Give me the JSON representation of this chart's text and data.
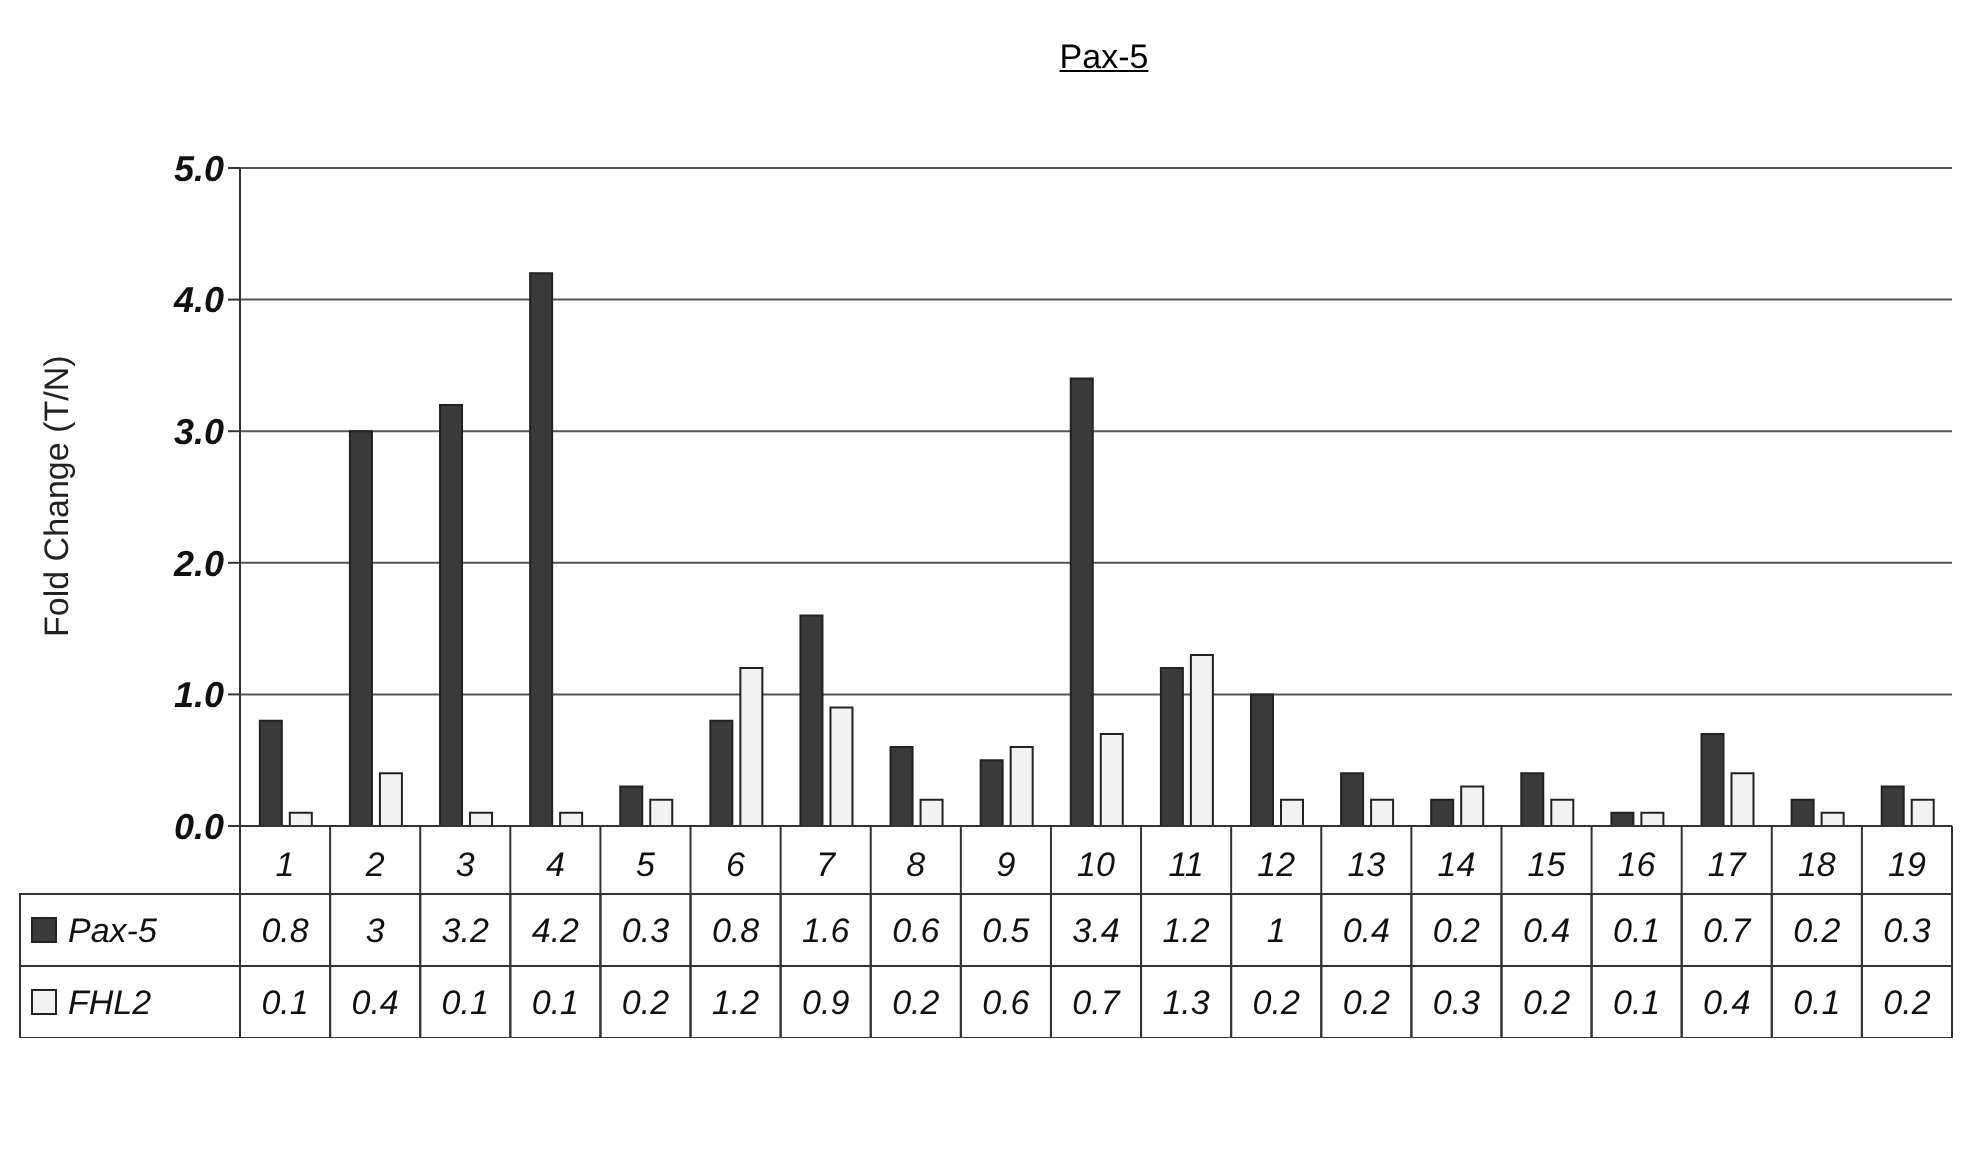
{
  "chart_data": {
    "type": "bar",
    "title": "Pax-5",
    "ylabel": "Fold Change (T/N)",
    "categories": [
      "1",
      "2",
      "3",
      "4",
      "5",
      "6",
      "7",
      "8",
      "9",
      "10",
      "11",
      "12",
      "13",
      "14",
      "15",
      "16",
      "17",
      "18",
      "19"
    ],
    "series": [
      {
        "name": "Pax-5",
        "color": "#3a3a3a",
        "values": [
          0.8,
          3,
          3.2,
          4.2,
          0.3,
          0.8,
          1.6,
          0.6,
          0.5,
          3.4,
          1.2,
          1,
          0.4,
          0.2,
          0.4,
          0.1,
          0.7,
          0.2,
          0.3
        ]
      },
      {
        "name": "FHL2",
        "color": "#f2f2f2",
        "values": [
          0.1,
          0.4,
          0.1,
          0.1,
          0.2,
          1.2,
          0.9,
          0.2,
          0.6,
          0.7,
          1.3,
          0.2,
          0.2,
          0.3,
          0.2,
          0.1,
          0.4,
          0.1,
          0.2
        ]
      }
    ],
    "ylim": [
      0,
      5
    ],
    "yticks": [
      {
        "value": 0,
        "label": "0.0"
      },
      {
        "value": 1,
        "label": "1.0"
      },
      {
        "value": 2,
        "label": "2.0"
      },
      {
        "value": 3,
        "label": "3.0"
      },
      {
        "value": 4,
        "label": "4.0"
      },
      {
        "value": 5,
        "label": "5.0"
      }
    ],
    "grid": "y",
    "legend": "bottom",
    "data_labels": true
  }
}
